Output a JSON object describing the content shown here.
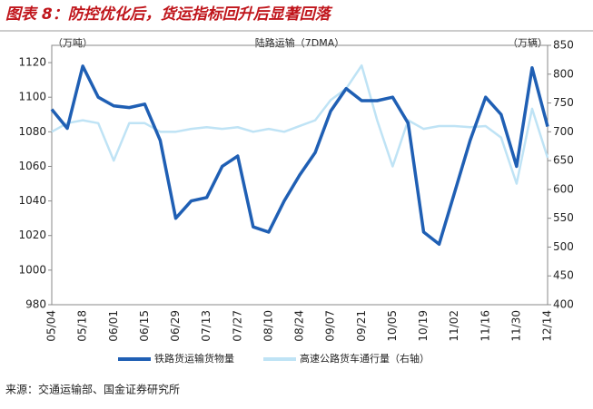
{
  "chart_data": {
    "type": "line",
    "title": "图表 8：防控优化后，货运指标回升后显著回落",
    "subtitle": "陆路运输（7DMA）",
    "y_unit": "（万吨）",
    "y2_unit": "（万辆）",
    "source": "来源：交通运输部、国金证券研究所",
    "categories": [
      "05/04",
      null,
      "05/18",
      null,
      "06/01",
      null,
      "06/15",
      null,
      "06/29",
      null,
      "07/13",
      null,
      "07/27",
      null,
      "08/10",
      null,
      "08/24",
      null,
      "09/07",
      null,
      "09/21",
      null,
      "10/05",
      null,
      "10/19",
      null,
      "11/02",
      null,
      "11/16",
      null,
      "11/30",
      null,
      "12/14"
    ],
    "series": [
      {
        "name": "铁路货运输货物量",
        "color": "#1f5fb4",
        "values": [
          1093,
          1082,
          1118,
          1100,
          1095,
          1094,
          1096,
          1075,
          1030,
          1040,
          1042,
          1060,
          1066,
          1025,
          1022,
          1040,
          1055,
          1068,
          1092,
          1105,
          1098,
          1098,
          1100,
          1085,
          1022,
          1015,
          1045,
          1075,
          1100,
          1090,
          1060,
          1117,
          1083
        ]
      },
      {
        "name": "高速公路货车通行量（右轴）",
        "color": "#bfe3f5",
        "axis": "y2",
        "values": [
          700,
          715,
          720,
          715,
          650,
          715,
          715,
          700,
          700,
          705,
          708,
          705,
          708,
          700,
          705,
          700,
          710,
          720,
          755,
          775,
          815,
          720,
          640,
          720,
          705,
          710,
          710,
          708,
          710,
          690,
          610,
          740,
          655
        ]
      }
    ],
    "ylim": [
      980,
      1130
    ],
    "yticks": [
      980,
      1000,
      1020,
      1040,
      1060,
      1080,
      1100,
      1120
    ],
    "y2lim": [
      400,
      850
    ],
    "y2ticks": [
      400,
      450,
      500,
      550,
      600,
      650,
      700,
      750,
      800,
      850
    ],
    "legend": "bottom"
  }
}
